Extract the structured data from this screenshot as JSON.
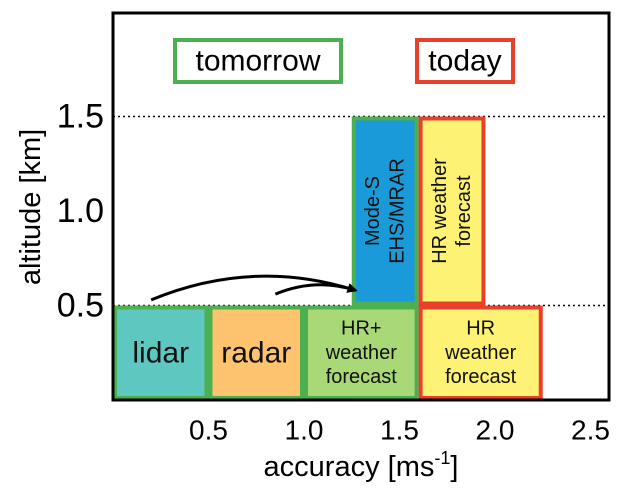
{
  "chart_data": {
    "type": "diagram-bar",
    "xlabel": "accuracy [ms",
    "xlabel_sup": "-1",
    "xlabel_suffix": "]",
    "ylabel": "altitude [km]",
    "xlim": [
      0,
      2.5
    ],
    "ylim": [
      0,
      2.0
    ],
    "xticks": [
      {
        "value": 0.5,
        "label": "0.5"
      },
      {
        "value": 1.0,
        "label": "1.0"
      },
      {
        "value": 1.5,
        "label": "1.5"
      },
      {
        "value": 2.0,
        "label": "2.0"
      },
      {
        "value": 2.5,
        "label": "2.5"
      }
    ],
    "yticks": [
      {
        "value": 0.5,
        "label": "0.5"
      },
      {
        "value": 1.0,
        "label": "1.0"
      },
      {
        "value": 1.5,
        "label": "1.5"
      }
    ],
    "reference_lines": [
      {
        "y": 0.5,
        "style": "dotted"
      },
      {
        "y": 1.5,
        "style": "dotted"
      }
    ],
    "colors": {
      "tomorrow": "#4caf50",
      "today": "#e8402a",
      "lidar": "#5ec8c0",
      "radar": "#fdc36e",
      "hr_plus": "#a9d877",
      "modes": "#1a9ad8",
      "hr_forecast": "#fef275"
    },
    "legend": [
      {
        "label": "tomorrow",
        "group": "tomorrow"
      },
      {
        "label": "today",
        "group": "today"
      }
    ],
    "bars": [
      {
        "name": "lidar",
        "label": [
          "lidar"
        ],
        "x": [
          0.0,
          0.5
        ],
        "y": [
          0.0,
          0.5
        ],
        "fill": "lidar",
        "group": "tomorrow",
        "orientation": "horizontal",
        "font": 30
      },
      {
        "name": "radar",
        "label": [
          "radar"
        ],
        "x": [
          0.5,
          1.0
        ],
        "y": [
          0.0,
          0.5
        ],
        "fill": "radar",
        "group": "tomorrow",
        "orientation": "horizontal",
        "font": 30
      },
      {
        "name": "hr-plus-forecast",
        "label": [
          "HR+",
          "weather",
          "forecast"
        ],
        "x": [
          1.0,
          1.6
        ],
        "y": [
          0.0,
          0.5
        ],
        "fill": "hr_plus",
        "group": "tomorrow",
        "orientation": "horizontal",
        "font": 20
      },
      {
        "name": "mode-s-ehs-mrar",
        "label": [
          "Mode-S",
          "EHS/MRAR"
        ],
        "x": [
          1.25,
          1.6
        ],
        "y": [
          0.5,
          1.5
        ],
        "fill": "modes",
        "group": "tomorrow",
        "orientation": "vertical",
        "font": 20
      },
      {
        "name": "hr-forecast-upper",
        "label": [
          "HR weather",
          "forecast"
        ],
        "x": [
          1.6,
          1.95
        ],
        "y": [
          0.5,
          1.5
        ],
        "fill": "hr_forecast",
        "group": "today",
        "orientation": "vertical",
        "font": 20
      },
      {
        "name": "hr-forecast-lower",
        "label": [
          "HR",
          "weather",
          "forecast"
        ],
        "x": [
          1.6,
          2.25
        ],
        "y": [
          0.0,
          0.5
        ],
        "fill": "hr_forecast",
        "group": "today",
        "orientation": "horizontal",
        "font": 20
      }
    ],
    "arrows": [
      {
        "from": [
          0.2,
          0.53
        ],
        "to": [
          1.27,
          0.58
        ]
      },
      {
        "from": [
          0.85,
          0.56
        ],
        "to": [
          1.27,
          0.58
        ]
      }
    ]
  }
}
